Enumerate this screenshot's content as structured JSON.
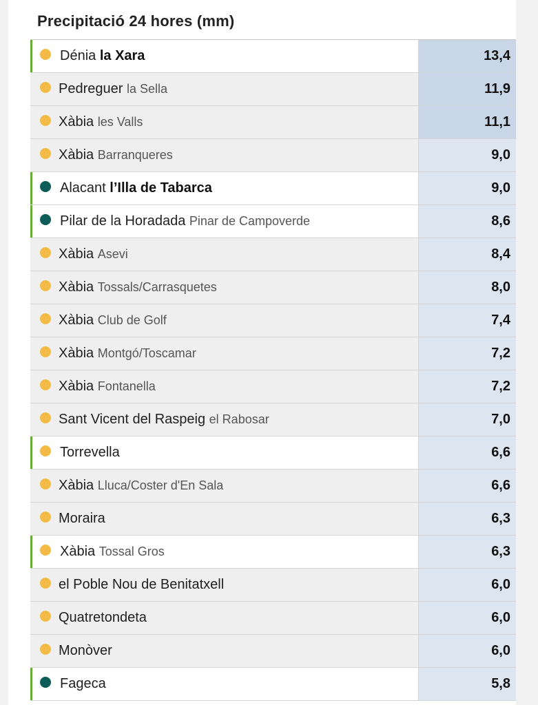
{
  "title": "Precipitació 24 hores (mm)",
  "rows": [
    {
      "name": "Dénia",
      "sub": "la Xara",
      "sub_bold": true,
      "value": "13,4",
      "highlight": true,
      "dot": "yellow",
      "top": true
    },
    {
      "name": "Pedreguer",
      "sub": "la Sella",
      "sub_bold": false,
      "value": "11,9",
      "highlight": false,
      "dot": "yellow",
      "top": true
    },
    {
      "name": "Xàbia",
      "sub": "les Valls",
      "sub_bold": false,
      "value": "11,1",
      "highlight": false,
      "dot": "yellow",
      "top": true
    },
    {
      "name": "Xàbia",
      "sub": "Barranqueres",
      "sub_bold": false,
      "value": "9,0",
      "highlight": false,
      "dot": "yellow",
      "top": false
    },
    {
      "name": "Alacant",
      "sub": "l’Illa de Tabarca",
      "sub_bold": true,
      "value": "9,0",
      "highlight": true,
      "dot": "teal",
      "top": false
    },
    {
      "name": "Pilar de la Horadada",
      "sub": "Pinar de Campoverde",
      "sub_bold": false,
      "value": "8,6",
      "highlight": true,
      "dot": "teal",
      "top": false
    },
    {
      "name": "Xàbia",
      "sub": "Asevi",
      "sub_bold": false,
      "value": "8,4",
      "highlight": false,
      "dot": "yellow",
      "top": false
    },
    {
      "name": "Xàbia",
      "sub": "Tossals/Carrasquetes",
      "sub_bold": false,
      "value": "8,0",
      "highlight": false,
      "dot": "yellow",
      "top": false
    },
    {
      "name": "Xàbia",
      "sub": "Club de Golf",
      "sub_bold": false,
      "value": "7,4",
      "highlight": false,
      "dot": "yellow",
      "top": false
    },
    {
      "name": "Xàbia",
      "sub": "Montgó/Toscamar",
      "sub_bold": false,
      "value": "7,2",
      "highlight": false,
      "dot": "yellow",
      "top": false
    },
    {
      "name": "Xàbia",
      "sub": "Fontanella",
      "sub_bold": false,
      "value": "7,2",
      "highlight": false,
      "dot": "yellow",
      "top": false
    },
    {
      "name": "Sant Vicent del Raspeig",
      "sub": "el Rabosar",
      "sub_bold": false,
      "value": "7,0",
      "highlight": false,
      "dot": "yellow",
      "top": false
    },
    {
      "name": "Torrevella",
      "sub": "",
      "sub_bold": false,
      "value": "6,6",
      "highlight": true,
      "dot": "yellow",
      "top": false
    },
    {
      "name": "Xàbia",
      "sub": "Lluca/Coster d'En Sala",
      "sub_bold": false,
      "value": "6,6",
      "highlight": false,
      "dot": "yellow",
      "top": false
    },
    {
      "name": "Moraira",
      "sub": "",
      "sub_bold": false,
      "value": "6,3",
      "highlight": false,
      "dot": "yellow",
      "top": false
    },
    {
      "name": "Xàbia",
      "sub": "Tossal Gros",
      "sub_bold": false,
      "value": "6,3",
      "highlight": true,
      "dot": "yellow",
      "top": false
    },
    {
      "name": "el Poble Nou de Benitatxell",
      "sub": "",
      "sub_bold": false,
      "value": "6,0",
      "highlight": false,
      "dot": "yellow",
      "top": false
    },
    {
      "name": "Quatretondeta",
      "sub": "",
      "sub_bold": false,
      "value": "6,0",
      "highlight": false,
      "dot": "yellow",
      "top": false
    },
    {
      "name": "Monòver",
      "sub": "",
      "sub_bold": false,
      "value": "6,0",
      "highlight": false,
      "dot": "yellow",
      "top": false
    },
    {
      "name": "Fageca",
      "sub": "",
      "sub_bold": false,
      "value": "5,8",
      "highlight": true,
      "dot": "teal",
      "top": false
    }
  ]
}
